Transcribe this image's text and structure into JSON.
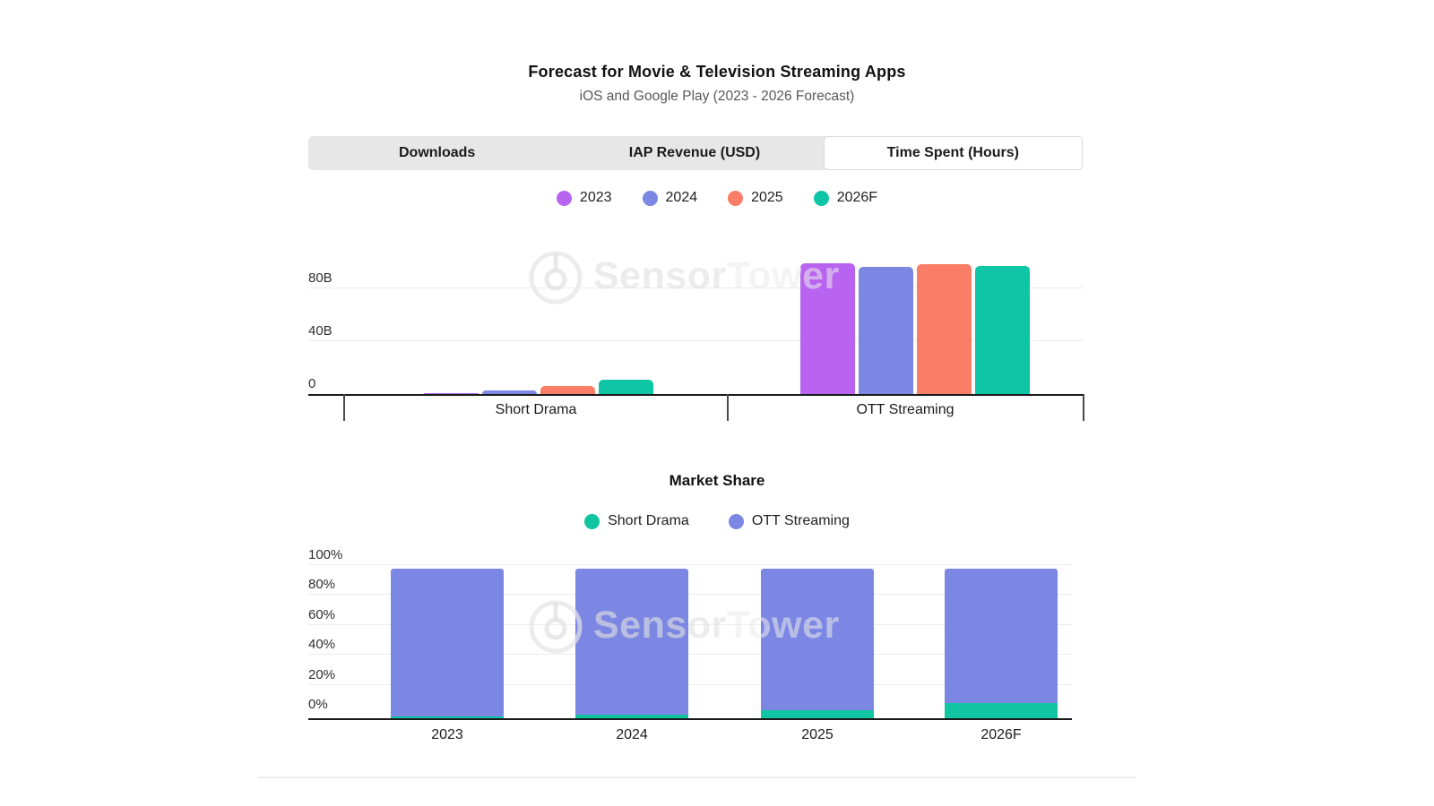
{
  "header": {
    "title": "Forecast for Movie & Television Streaming Apps",
    "subtitle": "iOS and Google Play (2023 - 2026 Forecast)"
  },
  "tabs": {
    "items": [
      {
        "label": "Downloads"
      },
      {
        "label": "IAP Revenue (USD)"
      },
      {
        "label": "Time Spent (Hours)"
      }
    ],
    "selected_index": 2
  },
  "watermark": {
    "bold": "Sensor",
    "light": "Tower"
  },
  "colors": {
    "year_2023": "#b964f0",
    "year_2024": "#7c87e3",
    "year_2025": "#fa7e67",
    "year_2026F": "#0ec6a5",
    "short_drama": "#12c5a2",
    "ott_streaming": "#7c87e3",
    "axis": "#1a1a1a",
    "gridline": "#ececec",
    "tab_bar_bg": "#e7e7e7",
    "selected_tab_bg": "#ffffff"
  },
  "chart_data": [
    {
      "type": "bar",
      "name": "time-spent-hours",
      "title": "",
      "ylabel": "Time Spent (Hours)",
      "categories": [
        "Short Drama",
        "OTT Streaming"
      ],
      "series": [
        {
          "name": "2023",
          "color": "#b964f0",
          "values_billions": [
            1,
            99
          ]
        },
        {
          "name": "2024",
          "color": "#7c87e3",
          "values_billions": [
            2.5,
            96
          ]
        },
        {
          "name": "2025",
          "color": "#fa7e67",
          "values_billions": [
            6,
            98
          ]
        },
        {
          "name": "2026F",
          "color": "#0ec6a5",
          "values_billions": [
            11,
            96.5
          ]
        }
      ],
      "yticks": [
        {
          "label": "0",
          "value": 0
        },
        {
          "label": "40B",
          "value": 40
        },
        {
          "label": "80B",
          "value": 80
        }
      ],
      "ylim": [
        0,
        123
      ],
      "grid": true,
      "legend_position": "top"
    },
    {
      "type": "stacked-bar",
      "name": "market-share",
      "title": "Market Share",
      "categories": [
        "2023",
        "2024",
        "2025",
        "2026F"
      ],
      "series": [
        {
          "name": "Short Drama",
          "color": "#12c5a2",
          "values_percent": [
            1,
            2.5,
            5.5,
            10
          ]
        },
        {
          "name": "OTT Streaming",
          "color": "#7c87e3",
          "values_percent": [
            99,
            97.5,
            94.5,
            90
          ]
        }
      ],
      "yticks": [
        {
          "label": "0%",
          "value": 0
        },
        {
          "label": "20%",
          "value": 20
        },
        {
          "label": "40%",
          "value": 40
        },
        {
          "label": "60%",
          "value": 60
        },
        {
          "label": "80%",
          "value": 80
        },
        {
          "label": "100%",
          "value": 100
        }
      ],
      "ylim": [
        0,
        100
      ],
      "grid": true,
      "legend_position": "top"
    }
  ]
}
